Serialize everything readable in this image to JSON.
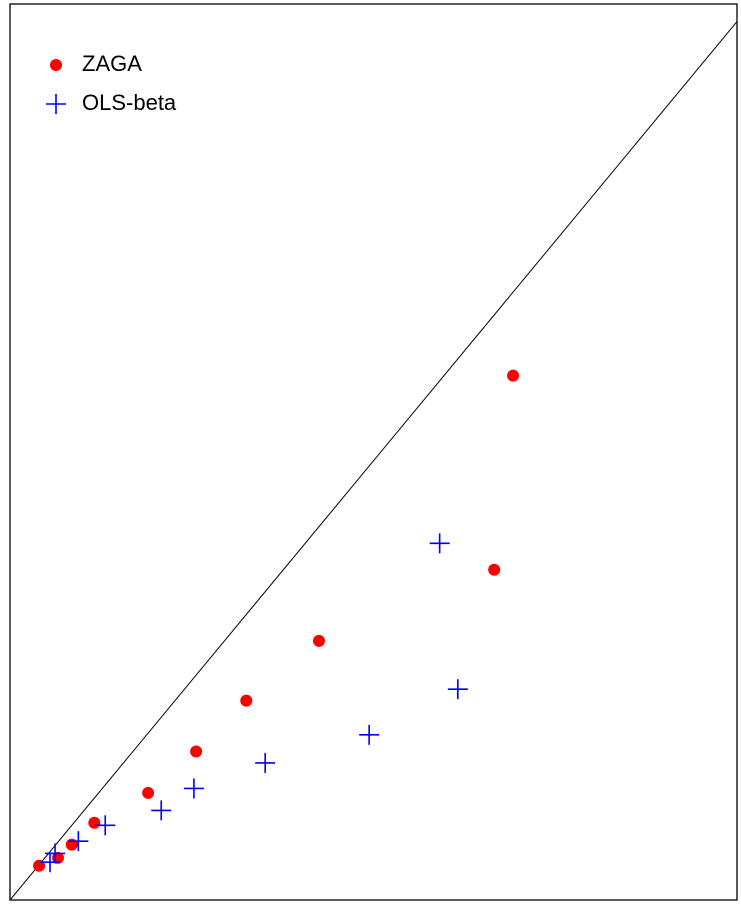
{
  "chart_data": {
    "type": "scatter",
    "xlim": [
      0,
      100
    ],
    "ylim": [
      0,
      102
    ],
    "legend": "topleft",
    "reference_line": "y=x",
    "series": [
      {
        "name": "ZAGA",
        "color": "#ff0000",
        "marker": "circle",
        "x": [
          4.0,
          6.6,
          8.5,
          11.6,
          19.0,
          25.6,
          32.5,
          42.5,
          66.6,
          69.2
        ],
        "values": [
          3.9,
          4.8,
          6.3,
          8.8,
          12.2,
          16.9,
          22.7,
          29.5,
          37.6,
          59.7
        ]
      },
      {
        "name": "OLS-beta",
        "color": "#0000ff",
        "marker": "plus",
        "x": [
          5.5,
          6.2,
          9.4,
          13.1,
          20.8,
          25.3,
          35.1,
          49.4,
          61.6,
          59.1
        ],
        "values": [
          4.3,
          5.3,
          6.7,
          8.5,
          10.2,
          12.7,
          15.6,
          18.8,
          24.0,
          40.6
        ]
      }
    ]
  }
}
